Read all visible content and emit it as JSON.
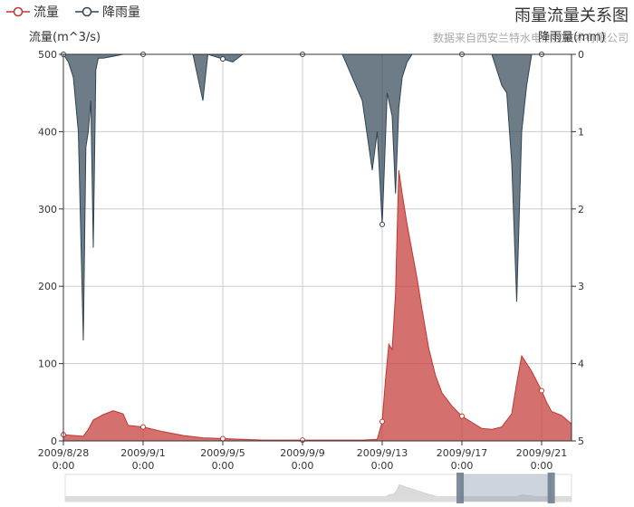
{
  "chart_data": {
    "type": "area",
    "title": "雨量流量关系图",
    "subtitle": "数据来自西安兰特水电测控技术有限公司",
    "legend": [
      {
        "name": "流量",
        "color": "#c23531"
      },
      {
        "name": "降雨量",
        "color": "#2f4554"
      }
    ],
    "ylabel_left": "流量(m^3/s)",
    "ylabel_right": "降雨量(mm)",
    "y_left_range": [
      0,
      500
    ],
    "y_left_ticks": [
      "0",
      "100",
      "200",
      "300",
      "400",
      "500"
    ],
    "y_right_range": [
      0,
      5
    ],
    "y_right_ticks": [
      "0",
      "1",
      "2",
      "3",
      "4",
      "5"
    ],
    "x_range": [
      "2009/8/28 0:00",
      "2009/9/22 12:00"
    ],
    "x_ticks": [
      {
        "date": "2009/8/28",
        "time": "0:00"
      },
      {
        "date": "2009/9/1",
        "time": "0:00"
      },
      {
        "date": "2009/9/5",
        "time": "0:00"
      },
      {
        "date": "2009/9/9",
        "time": "0:00"
      },
      {
        "date": "2009/9/13",
        "time": "0:00"
      },
      {
        "date": "2009/9/17",
        "time": "0:00"
      },
      {
        "date": "2009/9/21",
        "time": "0:00"
      }
    ],
    "grid": true,
    "datazoom_window": {
      "start_percent": 78,
      "end_percent": 96
    },
    "series": [
      {
        "name": "流量",
        "color": "#c23531",
        "axis": "left",
        "points": [
          [
            "2009/8/28 00:00",
            8
          ],
          [
            "2009/8/28 12:00",
            7
          ],
          [
            "2009/8/29 00:00",
            6
          ],
          [
            "2009/8/29 06:00",
            15
          ],
          [
            "2009/8/29 12:00",
            27
          ],
          [
            "2009/8/30 00:00",
            34
          ],
          [
            "2009/8/30 12:00",
            39
          ],
          [
            "2009/8/31 00:00",
            35
          ],
          [
            "2009/8/31 06:00",
            20
          ],
          [
            "2009/9/1 00:00",
            18
          ],
          [
            "2009/9/2 00:00",
            12
          ],
          [
            "2009/9/3 00:00",
            7
          ],
          [
            "2009/9/4 00:00",
            4
          ],
          [
            "2009/9/5 00:00",
            3
          ],
          [
            "2009/9/6 00:00",
            2
          ],
          [
            "2009/9/7 00:00",
            1
          ],
          [
            "2009/9/9 00:00",
            1
          ],
          [
            "2009/9/11 00:00",
            1
          ],
          [
            "2009/9/12 00:00",
            1
          ],
          [
            "2009/9/12 18:00",
            2
          ],
          [
            "2009/9/13 00:00",
            25
          ],
          [
            "2009/9/13 04:00",
            80
          ],
          [
            "2009/9/13 08:00",
            125
          ],
          [
            "2009/9/13 12:00",
            118
          ],
          [
            "2009/9/13 16:00",
            190
          ],
          [
            "2009/9/13 20:00",
            350
          ],
          [
            "2009/9/14 00:00",
            320
          ],
          [
            "2009/9/14 06:00",
            280
          ],
          [
            "2009/9/14 12:00",
            245
          ],
          [
            "2009/9/14 18:00",
            210
          ],
          [
            "2009/9/15 00:00",
            170
          ],
          [
            "2009/9/15 08:00",
            120
          ],
          [
            "2009/9/15 16:00",
            85
          ],
          [
            "2009/9/16 00:00",
            62
          ],
          [
            "2009/9/16 12:00",
            45
          ],
          [
            "2009/9/17 00:00",
            32
          ],
          [
            "2009/9/17 12:00",
            24
          ],
          [
            "2009/9/18 00:00",
            16
          ],
          [
            "2009/9/18 12:00",
            15
          ],
          [
            "2009/9/19 00:00",
            18
          ],
          [
            "2009/9/19 12:00",
            35
          ],
          [
            "2009/9/19 18:00",
            75
          ],
          [
            "2009/9/20 00:00",
            110
          ],
          [
            "2009/9/20 06:00",
            100
          ],
          [
            "2009/9/20 12:00",
            90
          ],
          [
            "2009/9/21 00:00",
            65
          ],
          [
            "2009/9/21 06:00",
            50
          ],
          [
            "2009/9/21 12:00",
            38
          ],
          [
            "2009/9/22 00:00",
            33
          ],
          [
            "2009/9/22 12:00",
            22
          ]
        ]
      },
      {
        "name": "降雨量",
        "color": "#2f4554",
        "axis": "right",
        "points": [
          [
            "2009/8/28 00:00",
            0
          ],
          [
            "2009/8/28 06:00",
            0.1
          ],
          [
            "2009/8/28 12:00",
            0.3
          ],
          [
            "2009/8/28 18:00",
            1.0
          ],
          [
            "2009/8/29 00:00",
            3.7
          ],
          [
            "2009/8/29 03:00",
            1.2
          ],
          [
            "2009/8/29 06:00",
            1.0
          ],
          [
            "2009/8/29 09:00",
            0.6
          ],
          [
            "2009/8/29 12:00",
            2.5
          ],
          [
            "2009/8/29 15:00",
            0.2
          ],
          [
            "2009/8/29 18:00",
            0.05
          ],
          [
            "2009/8/30 00:00",
            0.05
          ],
          [
            "2009/8/31 00:00",
            0
          ],
          [
            "2009/9/3 12:00",
            0
          ],
          [
            "2009/9/4 00:00",
            0.6
          ],
          [
            "2009/9/4 06:00",
            0
          ],
          [
            "2009/9/5 12:00",
            0.1
          ],
          [
            "2009/9/6 00:00",
            0
          ],
          [
            "2009/9/11 00:00",
            0
          ],
          [
            "2009/9/11 12:00",
            0.3
          ],
          [
            "2009/9/12 00:00",
            0.6
          ],
          [
            "2009/9/12 12:00",
            1.5
          ],
          [
            "2009/9/12 18:00",
            1.0
          ],
          [
            "2009/9/13 00:00",
            2.2
          ],
          [
            "2009/9/13 06:00",
            0.5
          ],
          [
            "2009/9/13 12:00",
            0.8
          ],
          [
            "2009/9/13 16:00",
            1.8
          ],
          [
            "2009/9/13 20:00",
            0.7
          ],
          [
            "2009/9/14 00:00",
            0.3
          ],
          [
            "2009/9/14 06:00",
            0.1
          ],
          [
            "2009/9/14 12:00",
            0
          ],
          [
            "2009/9/18 12:00",
            0
          ],
          [
            "2009/9/19 00:00",
            0.4
          ],
          [
            "2009/9/19 06:00",
            0.5
          ],
          [
            "2009/9/19 12:00",
            1.4
          ],
          [
            "2009/9/19 18:00",
            3.2
          ],
          [
            "2009/9/20 00:00",
            1.0
          ],
          [
            "2009/9/20 06:00",
            0.4
          ],
          [
            "2009/9/20 12:00",
            0
          ],
          [
            "2009/9/22 12:00",
            0
          ]
        ]
      }
    ]
  }
}
